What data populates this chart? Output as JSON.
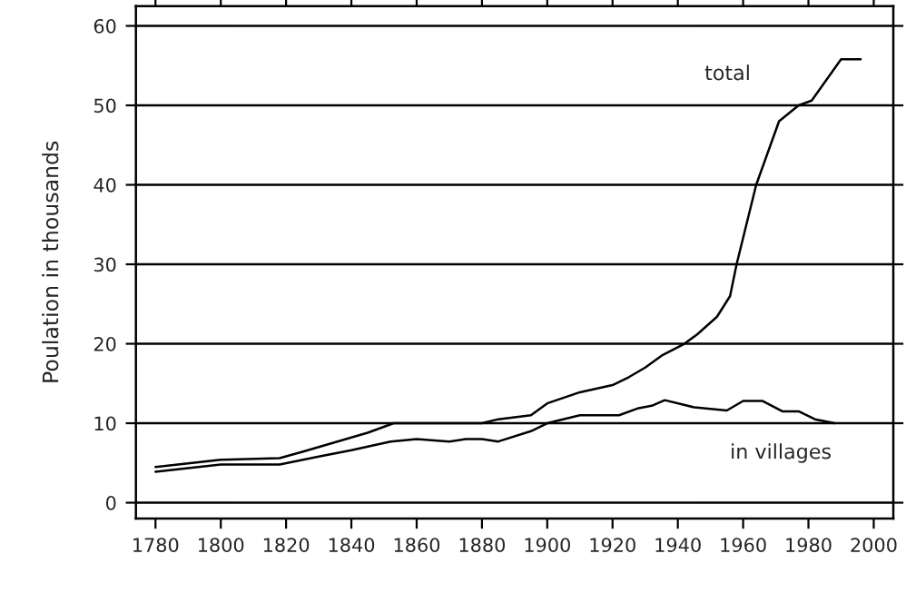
{
  "chart_data": {
    "type": "line",
    "ylabel": "Poulation in thousands",
    "xlim": [
      1774,
      2006
    ],
    "ylim": [
      -2,
      62.5
    ],
    "xticks": [
      1780,
      1800,
      1820,
      1840,
      1860,
      1880,
      1900,
      1920,
      1940,
      1960,
      1980,
      2000
    ],
    "yticks": [
      0,
      10,
      20,
      30,
      40,
      50,
      60
    ],
    "grid": "y",
    "legend": false,
    "marker": "none",
    "line_style": "solid",
    "series": [
      {
        "name": "total",
        "color": "#000000",
        "x": [
          1780,
          1800,
          1818,
          1825,
          1835,
          1845,
          1853,
          1880,
          1885,
          1895,
          1900,
          1910,
          1920,
          1925,
          1930,
          1935,
          1942,
          1946,
          1952,
          1956,
          1958,
          1964,
          1971,
          1977,
          1981,
          1990,
          1996
        ],
        "values": [
          4.5,
          5.4,
          5.6,
          6.4,
          7.6,
          8.8,
          10,
          10,
          10.5,
          11,
          12.5,
          13.9,
          14.8,
          15.8,
          17,
          18.5,
          20,
          21.2,
          23.4,
          26,
          30,
          40,
          48,
          50,
          50.6,
          55.8,
          55.8
        ]
      },
      {
        "name": "in villages",
        "color": "#000000",
        "x": [
          1780,
          1800,
          1818,
          1830,
          1840,
          1852,
          1860,
          1870,
          1875,
          1880,
          1885,
          1895,
          1900,
          1910,
          1922,
          1928,
          1932,
          1936,
          1945,
          1955,
          1960,
          1966,
          1972,
          1977,
          1982,
          1988
        ],
        "values": [
          3.9,
          4.8,
          4.8,
          5.8,
          6.6,
          7.7,
          8,
          7.7,
          8,
          8,
          7.7,
          9,
          10,
          11,
          11,
          11.9,
          12.2,
          12.9,
          12,
          11.6,
          12.8,
          12.8,
          11.5,
          11.5,
          10.5,
          10
        ]
      }
    ]
  }
}
